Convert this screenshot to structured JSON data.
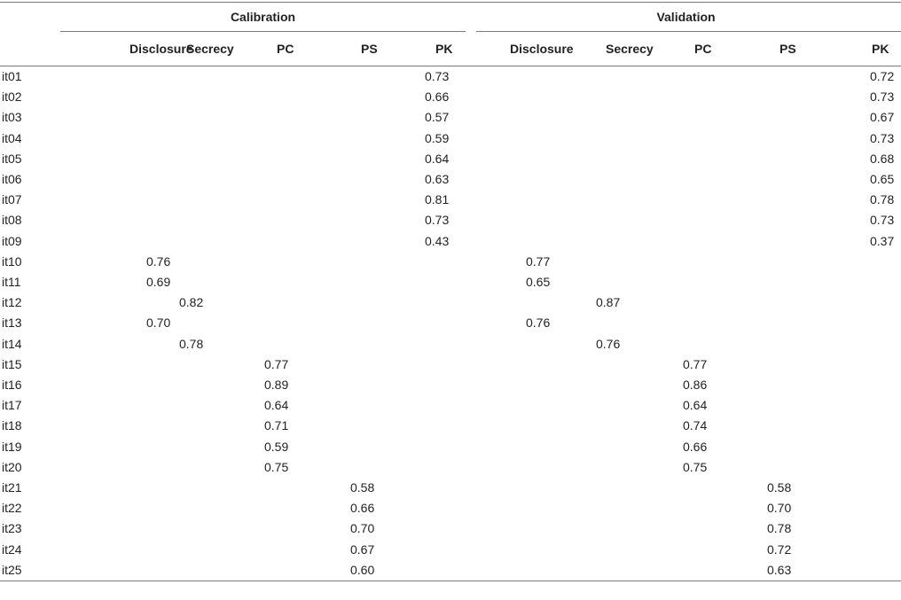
{
  "groups": {
    "calibration": "Calibration",
    "validation": "Validation"
  },
  "columns": [
    "Disclosure",
    "Secrecy",
    "PC",
    "PS",
    "PK",
    "Disclosure",
    "Secrecy",
    "PC",
    "PS",
    "PK"
  ],
  "rows": [
    {
      "label": "it01",
      "values": [
        "",
        "",
        "",
        "",
        "0.73",
        "",
        "",
        "",
        "",
        "0.72"
      ]
    },
    {
      "label": "it02",
      "values": [
        "",
        "",
        "",
        "",
        "0.66",
        "",
        "",
        "",
        "",
        "0.73"
      ]
    },
    {
      "label": "it03",
      "values": [
        "",
        "",
        "",
        "",
        "0.57",
        "",
        "",
        "",
        "",
        "0.67"
      ]
    },
    {
      "label": "it04",
      "values": [
        "",
        "",
        "",
        "",
        "0.59",
        "",
        "",
        "",
        "",
        "0.73"
      ]
    },
    {
      "label": "it05",
      "values": [
        "",
        "",
        "",
        "",
        "0.64",
        "",
        "",
        "",
        "",
        "0.68"
      ]
    },
    {
      "label": "it06",
      "values": [
        "",
        "",
        "",
        "",
        "0.63",
        "",
        "",
        "",
        "",
        "0.65"
      ]
    },
    {
      "label": "it07",
      "values": [
        "",
        "",
        "",
        "",
        "0.81",
        "",
        "",
        "",
        "",
        "0.78"
      ]
    },
    {
      "label": "it08",
      "values": [
        "",
        "",
        "",
        "",
        "0.73",
        "",
        "",
        "",
        "",
        "0.73"
      ]
    },
    {
      "label": "it09",
      "values": [
        "",
        "",
        "",
        "",
        "0.43",
        "",
        "",
        "",
        "",
        "0.37"
      ]
    },
    {
      "label": "it10",
      "values": [
        "0.76",
        "",
        "",
        "",
        "",
        "0.77",
        "",
        "",
        "",
        ""
      ]
    },
    {
      "label": "it11",
      "values": [
        "0.69",
        "",
        "",
        "",
        "",
        "0.65",
        "",
        "",
        "",
        ""
      ]
    },
    {
      "label": "it12",
      "values": [
        "",
        "0.82",
        "",
        "",
        "",
        "",
        "0.87",
        "",
        "",
        ""
      ]
    },
    {
      "label": "it13",
      "values": [
        "0.70",
        "",
        "",
        "",
        "",
        "0.76",
        "",
        "",
        "",
        ""
      ]
    },
    {
      "label": "it14",
      "values": [
        "",
        "0.78",
        "",
        "",
        "",
        "",
        "0.76",
        "",
        "",
        ""
      ]
    },
    {
      "label": "it15",
      "values": [
        "",
        "",
        "0.77",
        "",
        "",
        "",
        "",
        "0.77",
        "",
        ""
      ]
    },
    {
      "label": "it16",
      "values": [
        "",
        "",
        "0.89",
        "",
        "",
        "",
        "",
        "0.86",
        "",
        ""
      ]
    },
    {
      "label": "it17",
      "values": [
        "",
        "",
        "0.64",
        "",
        "",
        "",
        "",
        "0.64",
        "",
        ""
      ]
    },
    {
      "label": "it18",
      "values": [
        "",
        "",
        "0.71",
        "",
        "",
        "",
        "",
        "0.74",
        "",
        ""
      ]
    },
    {
      "label": "it19",
      "values": [
        "",
        "",
        "0.59",
        "",
        "",
        "",
        "",
        "0.66",
        "",
        ""
      ]
    },
    {
      "label": "it20",
      "values": [
        "",
        "",
        "0.75",
        "",
        "",
        "",
        "",
        "0.75",
        "",
        ""
      ]
    },
    {
      "label": "it21",
      "values": [
        "",
        "",
        "",
        "0.58",
        "",
        "",
        "",
        "",
        "0.58",
        ""
      ]
    },
    {
      "label": "it22",
      "values": [
        "",
        "",
        "",
        "0.66",
        "",
        "",
        "",
        "",
        "0.70",
        ""
      ]
    },
    {
      "label": "it23",
      "values": [
        "",
        "",
        "",
        "0.70",
        "",
        "",
        "",
        "",
        "0.78",
        ""
      ]
    },
    {
      "label": "it24",
      "values": [
        "",
        "",
        "",
        "0.67",
        "",
        "",
        "",
        "",
        "0.72",
        ""
      ]
    },
    {
      "label": "it25",
      "values": [
        "",
        "",
        "",
        "0.60",
        "",
        "",
        "",
        "",
        "0.63",
        ""
      ]
    }
  ]
}
